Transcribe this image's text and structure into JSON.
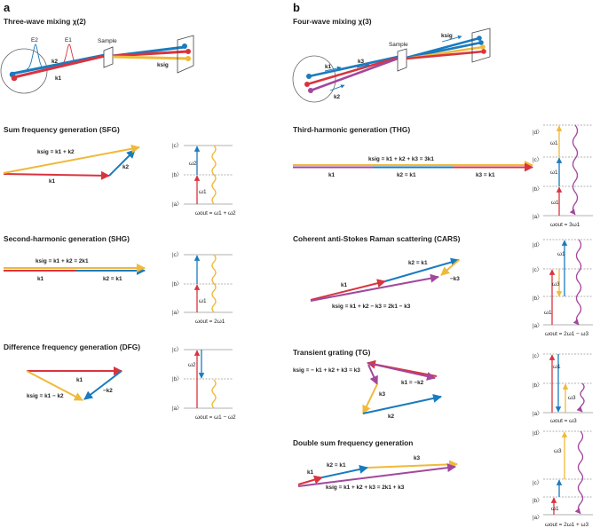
{
  "panels": {
    "a": {
      "letter": "a",
      "header": "Three-wave mixing χ(2)",
      "setup": {
        "sample": "Sample",
        "e2": "E2",
        "e1": "E1",
        "k2": "k2",
        "k1": "k1",
        "ksig": "ksig"
      },
      "sections": [
        {
          "title": "Sum frequency generation (SFG)",
          "eq": "ksig = k1 + k2",
          "vec1": "k1",
          "vec2": "k2",
          "levels": [
            "|c〉",
            "|b〉",
            "|a〉"
          ],
          "w1": "ω1",
          "w2": "ω2",
          "wout": "ωout = ω1 + ω2"
        },
        {
          "title": "Second-harmonic generation (SHG)",
          "eq": "ksig = k1 + k2 = 2k1",
          "vec1": "k1",
          "vec2": "k2 = k1",
          "levels": [
            "|c〉",
            "|b〉",
            "|a〉"
          ],
          "w1": "ω1",
          "wout": "ωout = 2ω1"
        },
        {
          "title": "Difference frequency generation (DFG)",
          "vec1": "k1",
          "vec2": "−k2",
          "eq": "ksig = k1 − k2",
          "levels": [
            "|c〉",
            "|b〉",
            "|a〉"
          ],
          "w2": "ω2",
          "wout": "ωout = ω1 − ω2"
        }
      ]
    },
    "b": {
      "letter": "b",
      "header": "Four-wave mixing χ(3)",
      "setup": {
        "sample": "Sample",
        "k1": "k1",
        "k3": "k3",
        "k2": "k2",
        "ksig": "ksig"
      },
      "sections": [
        {
          "title": "Third-harmonic generation (THG)",
          "eq": "ksig = k1 + k2 + k3 = 3k1",
          "v1": "k1",
          "v2": "k2 = k1",
          "v3": "k3 = k1",
          "levels": [
            "|d〉",
            "|c〉",
            "|b〉",
            "|a〉"
          ],
          "w1": "ω1",
          "wout": "ωout = 3ω1"
        },
        {
          "title": "Coherent anti-Stokes Raman scattering (CARS)",
          "v1": "k1",
          "v2": "k2 = k1",
          "v3": "−k3",
          "eq": "ksig = k1 + k2 − k3 = 2k1 − k3",
          "levels": [
            "|d〉",
            "|c〉",
            "|b〉",
            "|a〉"
          ],
          "w1": "ω1",
          "w3": "ω3",
          "wout": "ωout = 2ω1 − ω3"
        },
        {
          "title": "Transient grating (TG)",
          "eq": "ksig = − k1 + k2 + k3 = k3",
          "v1": "k1 = −k2",
          "v2": "k3",
          "v3": "k2",
          "levels": [
            "|c〉",
            "|b〉",
            "|a〉"
          ],
          "w1": "ω1",
          "w3": "ω3",
          "wout": "ωout = ω3"
        },
        {
          "title": "Double sum frequency generation",
          "v1": "k1",
          "v2": "k2 = k1",
          "v3": "k3",
          "eq": "ksig = k1 + k2 + k3 = 2k1 + k3",
          "levels": [
            "|d〉",
            "|c〉",
            "|b〉",
            "|a〉"
          ],
          "w1": "ω1",
          "w3": "ω3",
          "wout": "ωout = 2ω1 + ω3"
        }
      ]
    }
  },
  "colors": {
    "red": "#d8343f",
    "blue": "#1a7bbf",
    "yellow": "#f0b93a",
    "purple": "#a2479c",
    "gray": "#666666"
  }
}
